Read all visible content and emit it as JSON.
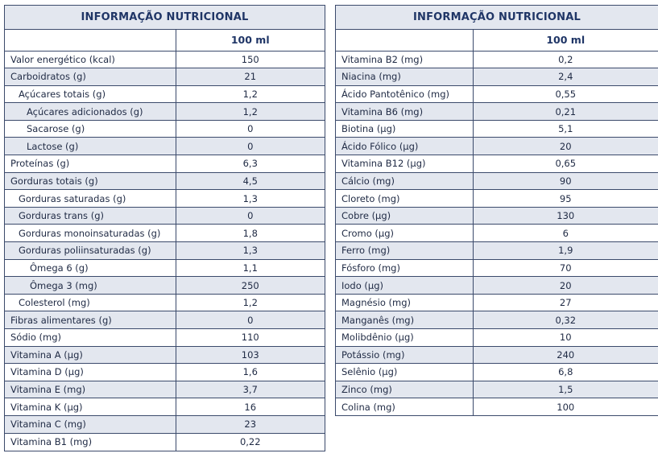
{
  "left": {
    "title": "INFORMAÇÃO NUTRICIONAL",
    "column_header": "100 ml",
    "rows": [
      {
        "name": "Valor energético (kcal)",
        "value": "150",
        "indent": 0,
        "shade": false
      },
      {
        "name": "Carboidratos (g)",
        "value": "21",
        "indent": 0,
        "shade": true
      },
      {
        "name": "Açúcares totais (g)",
        "value": "1,2",
        "indent": 1,
        "shade": false
      },
      {
        "name": "Açúcares adicionados (g)",
        "value": "1,2",
        "indent": 2,
        "shade": true
      },
      {
        "name": "Sacarose (g)",
        "value": "0",
        "indent": 2,
        "shade": false
      },
      {
        "name": "Lactose (g)",
        "value": "0",
        "indent": 2,
        "shade": true
      },
      {
        "name": "Proteínas (g)",
        "value": "6,3",
        "indent": 0,
        "shade": false
      },
      {
        "name": "Gorduras totais (g)",
        "value": "4,5",
        "indent": 0,
        "shade": true
      },
      {
        "name": "Gorduras saturadas (g)",
        "value": "1,3",
        "indent": 1,
        "shade": false
      },
      {
        "name": "Gorduras trans (g)",
        "value": "0",
        "indent": 1,
        "shade": true
      },
      {
        "name": "Gorduras monoinsaturadas (g)",
        "value": "1,8",
        "indent": 1,
        "shade": false
      },
      {
        "name": "Gorduras poliinsaturadas (g)",
        "value": "1,3",
        "indent": 1,
        "shade": true
      },
      {
        "name": "Ômega 6 (g)",
        "value": "1,1",
        "indent": 3,
        "shade": false
      },
      {
        "name": "Ômega 3 (mg)",
        "value": "250",
        "indent": 3,
        "shade": true
      },
      {
        "name": "Colesterol (mg)",
        "value": "1,2",
        "indent": 1,
        "shade": false
      },
      {
        "name": "Fibras alimentares (g)",
        "value": "0",
        "indent": 0,
        "shade": true
      },
      {
        "name": "Sódio (mg)",
        "value": "110",
        "indent": 0,
        "shade": false
      },
      {
        "name": "Vitamina A (µg)",
        "value": "103",
        "indent": 0,
        "shade": true
      },
      {
        "name": "Vitamina D (µg)",
        "value": "1,6",
        "indent": 0,
        "shade": false
      },
      {
        "name": "Vitamina E (mg)",
        "value": "3,7",
        "indent": 0,
        "shade": true
      },
      {
        "name": "Vitamina K (µg)",
        "value": "16",
        "indent": 0,
        "shade": false
      },
      {
        "name": "Vitamina C (mg)",
        "value": "23",
        "indent": 0,
        "shade": true
      },
      {
        "name": "Vitamina B1 (mg)",
        "value": "0,22",
        "indent": 0,
        "shade": false
      }
    ]
  },
  "right": {
    "title": "INFORMAÇÃO NUTRICIONAL",
    "column_header": "100 ml",
    "rows": [
      {
        "name": "Vitamina B2 (mg)",
        "value": "0,2",
        "shade": false
      },
      {
        "name": "Niacina (mg)",
        "value": "2,4",
        "shade": true
      },
      {
        "name": "Ácido Pantotênico (mg)",
        "value": "0,55",
        "shade": false
      },
      {
        "name": "Vitamina B6 (mg)",
        "value": "0,21",
        "shade": true
      },
      {
        "name": "Biotina (µg)",
        "value": "5,1",
        "shade": false
      },
      {
        "name": "Ácido Fólico (µg)",
        "value": "20",
        "shade": true
      },
      {
        "name": "Vitamina B12 (µg)",
        "value": "0,65",
        "shade": false
      },
      {
        "name": "Cálcio (mg)",
        "value": "90",
        "shade": true
      },
      {
        "name": "Cloreto (mg)",
        "value": "95",
        "shade": false
      },
      {
        "name": "Cobre (µg)",
        "value": "130",
        "shade": true
      },
      {
        "name": "Cromo (µg)",
        "value": "6",
        "shade": false
      },
      {
        "name": "Ferro (mg)",
        "value": "1,9",
        "shade": true
      },
      {
        "name": "Fósforo (mg)",
        "value": "70",
        "shade": false
      },
      {
        "name": "Iodo (µg)",
        "value": "20",
        "shade": true
      },
      {
        "name": "Magnésio (mg)",
        "value": "27",
        "shade": false
      },
      {
        "name": "Manganês (mg)",
        "value": "0,32",
        "shade": true
      },
      {
        "name": "Molibdênio (µg)",
        "value": "10",
        "shade": false
      },
      {
        "name": "Potássio (mg)",
        "value": "240",
        "shade": true
      },
      {
        "name": "Selênio (µg)",
        "value": "6,8",
        "shade": false
      },
      {
        "name": "Zinco (mg)",
        "value": "1,5",
        "shade": true
      },
      {
        "name": "Colina (mg)",
        "value": "100",
        "shade": false
      }
    ]
  }
}
